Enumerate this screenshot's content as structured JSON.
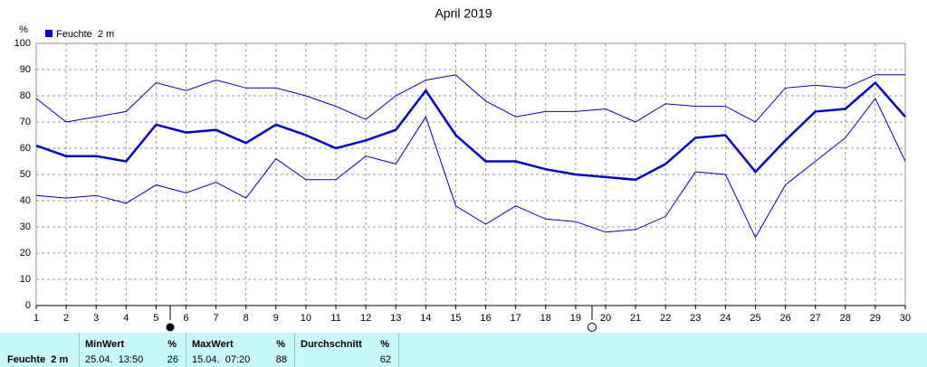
{
  "chart_data": {
    "type": "line",
    "title": "April 2019",
    "y_unit": "%",
    "x": [
      1,
      2,
      3,
      4,
      5,
      6,
      7,
      8,
      9,
      10,
      11,
      12,
      13,
      14,
      15,
      16,
      17,
      18,
      19,
      20,
      21,
      22,
      23,
      24,
      25,
      26,
      27,
      28,
      29,
      30
    ],
    "xlim": [
      1,
      30
    ],
    "xticks": [
      1,
      2,
      3,
      4,
      5,
      6,
      7,
      8,
      9,
      10,
      11,
      12,
      13,
      14,
      15,
      16,
      17,
      18,
      19,
      20,
      21,
      22,
      23,
      24,
      25,
      26,
      27,
      28,
      29,
      30
    ],
    "ylim": [
      0,
      100
    ],
    "yticks": [
      0,
      10,
      20,
      30,
      40,
      50,
      60,
      70,
      80,
      90,
      100
    ],
    "grid": true,
    "legend": "top-left",
    "series": [
      {
        "color": "#0000c8",
        "width": 1,
        "values": [
          79,
          70,
          72,
          74,
          85,
          82,
          86,
          83,
          83,
          80,
          76,
          71,
          80,
          86,
          88,
          78,
          72,
          74,
          74,
          75,
          70,
          77,
          76,
          76,
          70,
          83,
          84,
          83,
          88,
          88
        ]
      },
      {
        "name": "Feuchte  2 m",
        "color": "#0000c8",
        "width": 2.5,
        "values": [
          61,
          57,
          57,
          55,
          69,
          66,
          67,
          62,
          69,
          65,
          60,
          63,
          67,
          82,
          65,
          55,
          55,
          52,
          50,
          49,
          48,
          54,
          64,
          65,
          51,
          63,
          74,
          75,
          85,
          72
        ]
      },
      {
        "color": "#0000c8",
        "width": 1,
        "values": [
          42,
          41,
          42,
          39,
          46,
          43,
          47,
          41,
          56,
          48,
          48,
          57,
          54,
          72,
          38,
          31,
          38,
          33,
          32,
          28,
          29,
          34,
          51,
          50,
          26,
          46,
          55,
          64,
          79,
          55
        ]
      }
    ]
  },
  "stats": {
    "row_label": "Feuchte  2 m",
    "columns": [
      {
        "header": "MinWert",
        "unit": "%",
        "time": "25.04.  13:50",
        "value": 26
      },
      {
        "header": "MaxWert",
        "unit": "%",
        "time": "15.04.  07:20",
        "value": 88
      },
      {
        "header": "Durchschnitt",
        "unit": "%",
        "value": 62
      }
    ]
  }
}
